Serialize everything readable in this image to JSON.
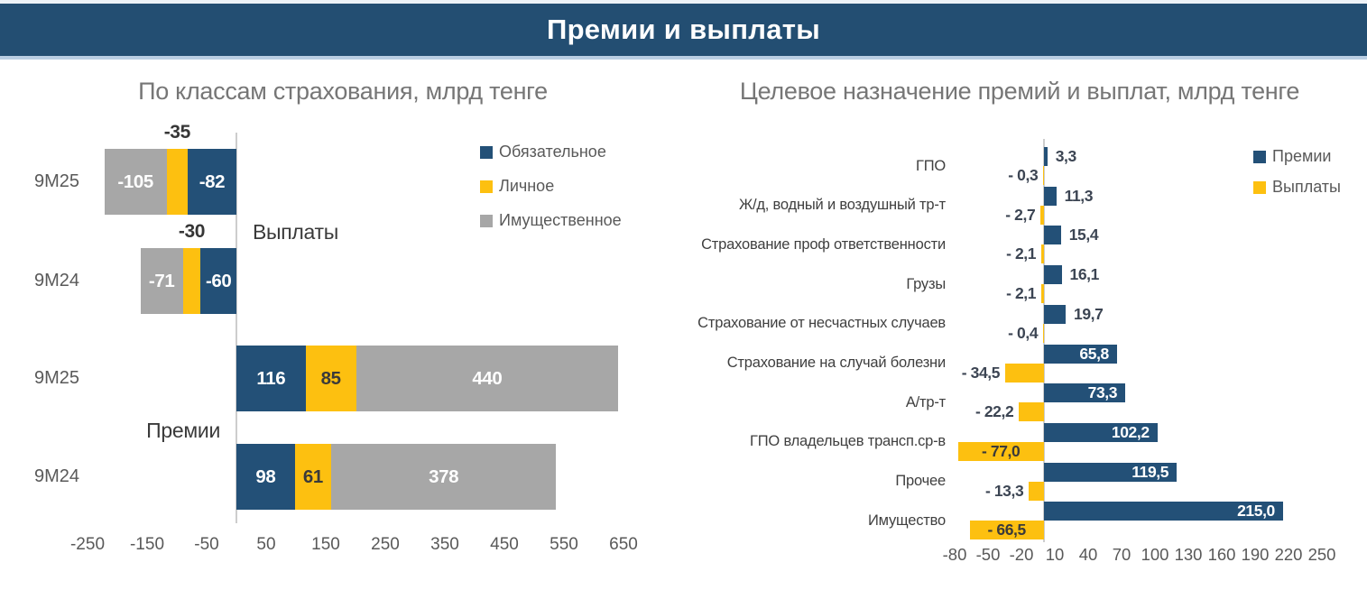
{
  "banner": {
    "title": "Премии и выплаты"
  },
  "colors": {
    "banner": "#234E72",
    "blue": "#235077",
    "yellow": "#FDC010",
    "gray": "#A7A7A7",
    "zero_line": "#CDCDCD",
    "accent_line": "#B9CEE3",
    "title_gray": "#767676",
    "label_gray": "#595959",
    "label_dark": "#3C4553"
  },
  "chart_data": [
    {
      "type": "bar",
      "variant": "stacked-diverging-horizontal",
      "title": "По классам страхования, млрд тенге",
      "series_names": [
        "Обязательное",
        "Личное",
        "Имущественное"
      ],
      "legend": [
        {
          "label": "Обязательное",
          "color": "#235077"
        },
        {
          "label": "Личное",
          "color": "#FDC010"
        },
        {
          "label": "Имущественное",
          "color": "#A7A7A7"
        }
      ],
      "groups": [
        {
          "group": "Выплаты",
          "rows": [
            {
              "label": "9М25",
              "values": [
                -82,
                -35,
                -105
              ],
              "value_labels": [
                "-82",
                "-35",
                "-105"
              ]
            },
            {
              "label": "9М24",
              "values": [
                -60,
                -30,
                -71
              ],
              "value_labels": [
                "-60",
                "-30",
                "-71"
              ]
            }
          ]
        },
        {
          "group": "Премии",
          "rows": [
            {
              "label": "9М25",
              "values": [
                116,
                85,
                440
              ],
              "value_labels": [
                "116",
                "85",
                "440"
              ]
            },
            {
              "label": "9М24",
              "values": [
                98,
                61,
                378
              ],
              "value_labels": [
                "98",
                "61",
                "378"
              ]
            }
          ]
        }
      ],
      "xticks": [
        -250,
        -150,
        -50,
        50,
        150,
        250,
        350,
        450,
        550,
        650
      ],
      "xlim": [
        -250,
        650
      ],
      "grid": false,
      "legend_position": "right-top"
    },
    {
      "type": "bar",
      "variant": "paired-diverging-horizontal",
      "title": "Целевое назначение премий и выплат, млрд тенге",
      "legend": [
        {
          "label": "Премии",
          "color": "#235077"
        },
        {
          "label": "Выплаты",
          "color": "#FDC010"
        }
      ],
      "categories": [
        "ГПО",
        "Ж/д, водный и воздушный тр-т",
        "Страхование проф ответственности",
        "Грузы",
        "Страхование от несчастных случаев",
        "Страхование на случай болезни",
        "А/тр-т",
        "ГПО владельцев трансп.ср-в",
        "Прочее",
        "Имущество"
      ],
      "series": [
        {
          "name": "Премии",
          "values": [
            3.3,
            11.3,
            15.4,
            16.1,
            19.7,
            65.8,
            73.3,
            102.2,
            119.5,
            215.0
          ],
          "labels": [
            "3,3",
            "11,3",
            "15,4",
            "16,1",
            "19,7",
            "65,8",
            "73,3",
            "102,2",
            "119,5",
            "215,0"
          ]
        },
        {
          "name": "Выплаты",
          "values": [
            -0.3,
            -2.7,
            -2.1,
            -2.1,
            -0.4,
            -34.5,
            -22.2,
            -77.0,
            -13.3,
            -66.5
          ],
          "labels": [
            "- 0,3",
            "- 2,7",
            "- 2,1",
            "- 2,1",
            "- 0,4",
            "- 34,5",
            "- 22,2",
            "- 77,0",
            "- 13,3",
            "- 66,5"
          ]
        }
      ],
      "xticks": [
        -80,
        -50,
        -20,
        10,
        40,
        70,
        100,
        130,
        160,
        190,
        220,
        250
      ],
      "xlim": [
        -80,
        250
      ],
      "grid": false,
      "legend_position": "right-top"
    }
  ]
}
